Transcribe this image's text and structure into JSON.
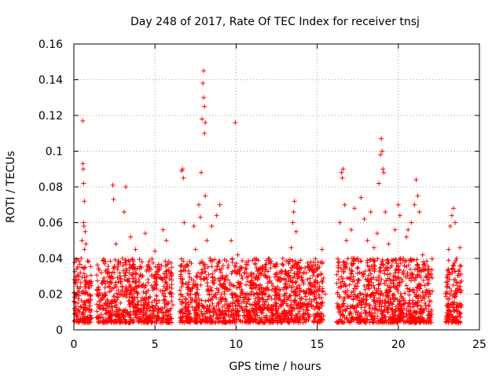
{
  "chart_data": {
    "type": "scatter",
    "title": "Day 248 of 2017, Rate Of TEC Index for receiver tnsj",
    "xlabel": "GPS time / hours",
    "ylabel": "ROTI / TECUs",
    "xlim": [
      0,
      25
    ],
    "ylim": [
      0,
      0.16
    ],
    "grid": true,
    "marker": "+",
    "color": "#ff0000",
    "x_ticks": [
      "0",
      "5",
      "10",
      "15",
      "20",
      "25"
    ],
    "y_ticks": [
      "0",
      "0.02",
      "0.04",
      "0.06",
      "0.08",
      "0.1",
      "0.12",
      "0.14",
      "0.16"
    ],
    "series": [
      {
        "name": "ROTI",
        "points": [
          [
            0.05,
            0.018
          ],
          [
            0.1,
            0.026
          ],
          [
            0.15,
            0.012
          ],
          [
            0.2,
            0.021
          ],
          [
            0.25,
            0.015
          ],
          [
            0.3,
            0.03
          ],
          [
            0.35,
            0.01
          ],
          [
            0.4,
            0.024
          ],
          [
            0.45,
            0.04
          ],
          [
            0.5,
            0.05
          ],
          [
            0.55,
            0.117
          ],
          [
            0.55,
            0.093
          ],
          [
            0.58,
            0.09
          ],
          [
            0.6,
            0.082
          ],
          [
            0.6,
            0.06
          ],
          [
            0.62,
            0.058
          ],
          [
            0.65,
            0.072
          ],
          [
            0.65,
            0.045
          ],
          [
            0.7,
            0.055
          ],
          [
            0.7,
            0.035
          ],
          [
            0.75,
            0.048
          ],
          [
            0.8,
            0.03
          ],
          [
            0.85,
            0.02
          ],
          [
            0.9,
            0.016
          ],
          [
            1.0,
            0.01
          ],
          [
            1.5,
            0.02
          ],
          [
            1.6,
            0.012
          ],
          [
            1.8,
            0.018
          ],
          [
            1.85,
            0.029
          ],
          [
            2.0,
            0.014
          ],
          [
            2.2,
            0.024
          ],
          [
            2.3,
            0.008
          ],
          [
            2.4,
            0.081
          ],
          [
            2.45,
            0.073
          ],
          [
            2.5,
            0.035
          ],
          [
            2.6,
            0.048
          ],
          [
            2.8,
            0.02
          ],
          [
            2.9,
            0.027
          ],
          [
            3.0,
            0.04
          ],
          [
            3.1,
            0.066
          ],
          [
            3.2,
            0.08
          ],
          [
            3.3,
            0.022
          ],
          [
            3.4,
            0.032
          ],
          [
            3.5,
            0.052
          ],
          [
            3.6,
            0.015
          ],
          [
            3.8,
            0.045
          ],
          [
            4.0,
            0.028
          ],
          [
            4.2,
            0.038
          ],
          [
            4.4,
            0.054
          ],
          [
            4.6,
            0.018
          ],
          [
            4.8,
            0.03
          ],
          [
            5.0,
            0.044
          ],
          [
            5.2,
            0.012
          ],
          [
            5.4,
            0.036
          ],
          [
            5.5,
            0.056
          ],
          [
            5.7,
            0.05
          ],
          [
            5.9,
            0.024
          ],
          [
            6.0,
            0.032
          ],
          [
            6.1,
            0.014
          ],
          [
            6.6,
            0.02
          ],
          [
            6.6,
            0.031
          ],
          [
            6.65,
            0.089
          ],
          [
            6.7,
            0.09
          ],
          [
            6.75,
            0.085
          ],
          [
            6.8,
            0.06
          ],
          [
            6.9,
            0.026
          ],
          [
            7.0,
            0.012
          ],
          [
            7.2,
            0.018
          ],
          [
            7.4,
            0.058
          ],
          [
            7.5,
            0.045
          ],
          [
            7.6,
            0.03
          ],
          [
            7.7,
            0.07
          ],
          [
            7.8,
            0.063
          ],
          [
            7.85,
            0.088
          ],
          [
            7.9,
            0.118
          ],
          [
            7.95,
            0.138
          ],
          [
            8.0,
            0.145
          ],
          [
            8.0,
            0.13
          ],
          [
            8.05,
            0.125
          ],
          [
            8.05,
            0.11
          ],
          [
            8.1,
            0.116
          ],
          [
            8.1,
            0.075
          ],
          [
            8.2,
            0.05
          ],
          [
            8.3,
            0.022
          ],
          [
            8.4,
            0.04
          ],
          [
            8.5,
            0.058
          ],
          [
            8.7,
            0.033
          ],
          [
            8.8,
            0.064
          ],
          [
            9.0,
            0.07
          ],
          [
            9.1,
            0.02
          ],
          [
            9.2,
            0.036
          ],
          [
            9.3,
            0.014
          ],
          [
            9.5,
            0.028
          ],
          [
            9.7,
            0.05
          ],
          [
            9.8,
            0.018
          ],
          [
            9.95,
            0.116
          ],
          [
            10.1,
            0.042
          ],
          [
            10.3,
            0.026
          ],
          [
            10.5,
            0.032
          ],
          [
            10.8,
            0.02
          ],
          [
            11.0,
            0.012
          ],
          [
            11.2,
            0.024
          ],
          [
            11.4,
            0.034
          ],
          [
            11.6,
            0.018
          ],
          [
            11.8,
            0.03
          ],
          [
            12.0,
            0.014
          ],
          [
            12.2,
            0.026
          ],
          [
            12.4,
            0.036
          ],
          [
            12.6,
            0.02
          ],
          [
            12.8,
            0.028
          ],
          [
            13.0,
            0.016
          ],
          [
            13.2,
            0.032
          ],
          [
            13.4,
            0.046
          ],
          [
            13.5,
            0.06
          ],
          [
            13.55,
            0.066
          ],
          [
            13.6,
            0.072
          ],
          [
            13.7,
            0.055
          ],
          [
            13.8,
            0.036
          ],
          [
            14.0,
            0.022
          ],
          [
            14.2,
            0.032
          ],
          [
            14.4,
            0.014
          ],
          [
            14.6,
            0.038
          ],
          [
            14.8,
            0.024
          ],
          [
            15.0,
            0.03
          ],
          [
            15.1,
            0.012
          ],
          [
            15.3,
            0.045
          ],
          [
            15.5,
            0.02
          ],
          [
            16.2,
            0.026
          ],
          [
            16.3,
            0.036
          ],
          [
            16.4,
            0.06
          ],
          [
            16.5,
            0.088
          ],
          [
            16.55,
            0.085
          ],
          [
            16.6,
            0.09
          ],
          [
            16.7,
            0.07
          ],
          [
            16.8,
            0.05
          ],
          [
            17.0,
            0.034
          ],
          [
            17.1,
            0.056
          ],
          [
            17.3,
            0.068
          ],
          [
            17.5,
            0.04
          ],
          [
            17.7,
            0.074
          ],
          [
            17.9,
            0.062
          ],
          [
            18.1,
            0.05
          ],
          [
            18.3,
            0.066
          ],
          [
            18.5,
            0.046
          ],
          [
            18.7,
            0.054
          ],
          [
            18.8,
            0.082
          ],
          [
            18.9,
            0.098
          ],
          [
            18.95,
            0.107
          ],
          [
            19.0,
            0.1
          ],
          [
            19.05,
            0.09
          ],
          [
            19.1,
            0.088
          ],
          [
            19.2,
            0.066
          ],
          [
            19.4,
            0.048
          ],
          [
            19.6,
            0.036
          ],
          [
            19.8,
            0.056
          ],
          [
            20.0,
            0.07
          ],
          [
            20.1,
            0.064
          ],
          [
            20.3,
            0.04
          ],
          [
            20.5,
            0.052
          ],
          [
            20.6,
            0.056
          ],
          [
            20.8,
            0.06
          ],
          [
            21.0,
            0.07
          ],
          [
            21.1,
            0.084
          ],
          [
            21.2,
            0.075
          ],
          [
            21.3,
            0.066
          ],
          [
            21.5,
            0.042
          ],
          [
            21.7,
            0.03
          ],
          [
            21.9,
            0.022
          ],
          [
            22.0,
            0.016
          ],
          [
            23.0,
            0.03
          ],
          [
            23.1,
            0.045
          ],
          [
            23.2,
            0.058
          ],
          [
            23.3,
            0.064
          ],
          [
            23.4,
            0.068
          ],
          [
            23.5,
            0.06
          ],
          [
            23.6,
            0.04
          ],
          [
            23.7,
            0.022
          ],
          [
            23.8,
            0.036
          ],
          [
            23.8,
            0.046
          ],
          [
            23.9,
            0.014
          ]
        ]
      }
    ],
    "dense_band": {
      "description": "dense background of points across the GPS day",
      "segments": [
        [
          0.0,
          1.1
        ],
        [
          1.4,
          6.05
        ],
        [
          6.5,
          15.4
        ],
        [
          16.2,
          22.1
        ],
        [
          22.9,
          23.9
        ]
      ],
      "typical_range": [
        0.004,
        0.04
      ]
    }
  }
}
